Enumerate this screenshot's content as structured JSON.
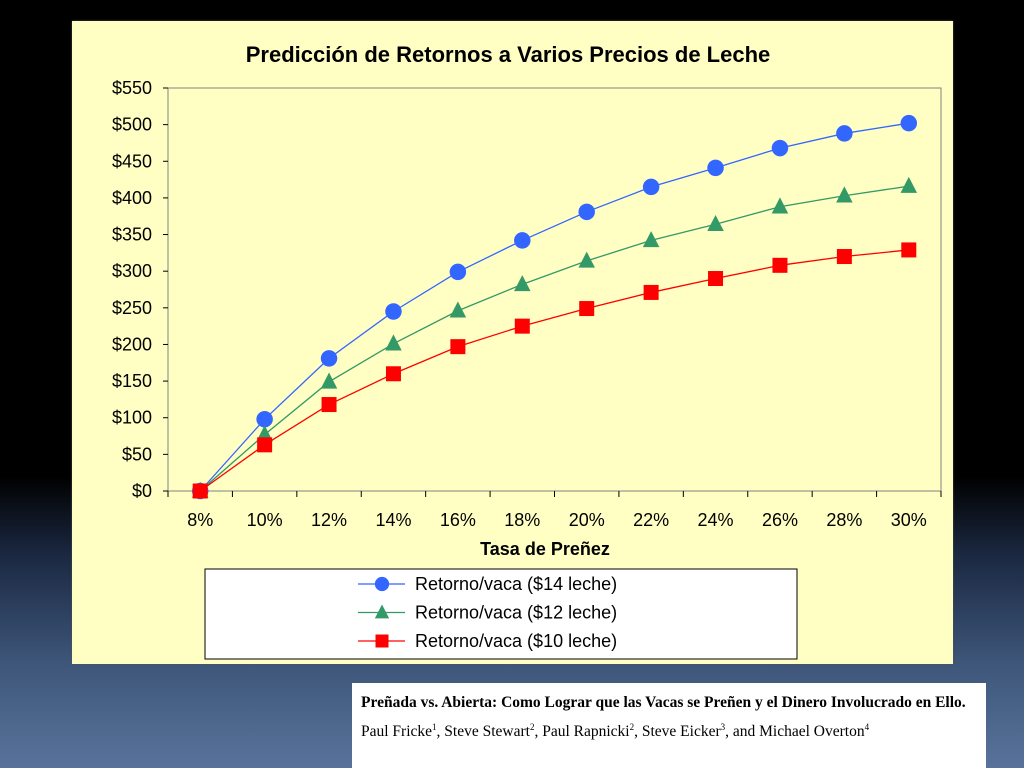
{
  "chart_data": {
    "type": "line",
    "title": "Predicción de Retornos a Varios Precios de Leche",
    "xlabel": "Tasa de Preñez",
    "ylabel": "",
    "categories": [
      "8%",
      "10%",
      "12%",
      "14%",
      "16%",
      "18%",
      "20%",
      "22%",
      "24%",
      "26%",
      "28%",
      "30%"
    ],
    "yticks": [
      "$0",
      "$50",
      "$100",
      "$150",
      "$200",
      "$250",
      "$300",
      "$350",
      "$400",
      "$450",
      "$500",
      "$550"
    ],
    "ylim": [
      0,
      550
    ],
    "grid": "none",
    "legend_position": "bottom",
    "series": [
      {
        "name": "Retorno/vaca ($14 leche)",
        "marker": "circle",
        "color": "#3366ff",
        "values": [
          0,
          98,
          181,
          245,
          299,
          342,
          381,
          415,
          441,
          468,
          488,
          502
        ]
      },
      {
        "name": "Retorno/vaca ($12 leche)",
        "marker": "triangle",
        "color": "#339966",
        "values": [
          0,
          77,
          149,
          201,
          246,
          282,
          314,
          342,
          364,
          388,
          403,
          416
        ]
      },
      {
        "name": "Retorno/vaca ($10 leche)",
        "marker": "square",
        "color": "#ff0000",
        "values": [
          0,
          63,
          118,
          160,
          197,
          225,
          249,
          271,
          290,
          308,
          320,
          329
        ]
      }
    ]
  },
  "citation": {
    "title": "Preñada vs. Abierta: Como Lograr que las Vacas se Preñen y el Dinero Involucrado en Ello.",
    "authors": [
      {
        "name": "Paul Fricke",
        "sup": "1",
        "sep": ", "
      },
      {
        "name": "Steve Stewart",
        "sup": "2",
        "sep": ", "
      },
      {
        "name": "Paul Rapnicki",
        "sup": "2",
        "sep": ", "
      },
      {
        "name": "Steve Eicker",
        "sup": "3",
        "sep": ", and "
      },
      {
        "name": "Michael Overton",
        "sup": "4",
        "sep": ""
      }
    ]
  }
}
